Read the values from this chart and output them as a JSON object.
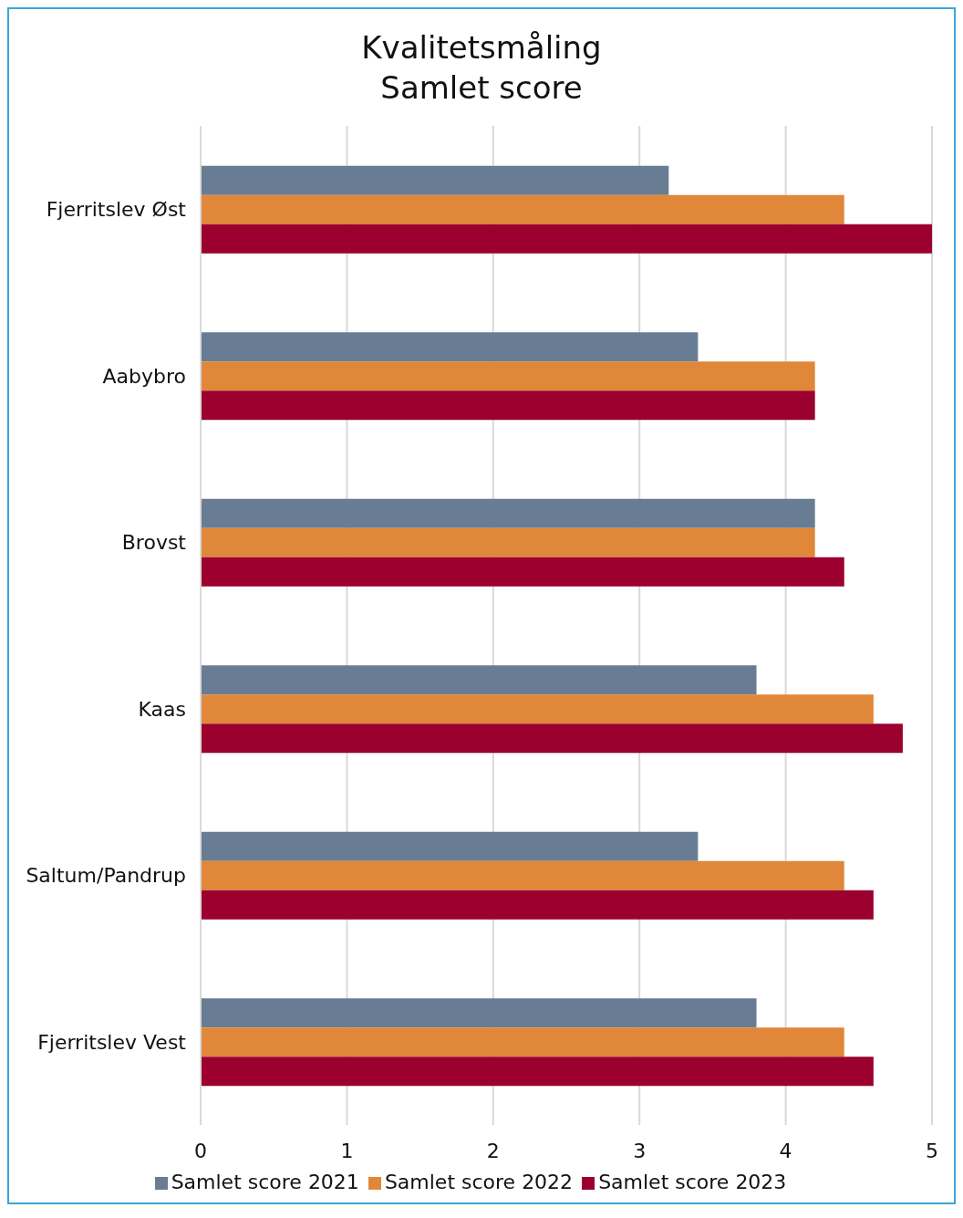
{
  "chart_data": {
    "type": "bar",
    "orientation": "horizontal",
    "title": "Kvalitetsmåling\nSamlet score",
    "categories": [
      "Fjerritslev Øst",
      "Aabybro",
      "Brovst",
      "Kaas",
      "Saltum/Pandrup",
      "Fjerritslev Vest"
    ],
    "series": [
      {
        "name": "Samlet score 2021",
        "color": "#687d93",
        "values": [
          3.2,
          3.4,
          4.2,
          3.8,
          3.4,
          3.8
        ]
      },
      {
        "name": "Samlet score 2022",
        "color": "#e0873a",
        "values": [
          4.4,
          4.2,
          4.2,
          4.6,
          4.4,
          4.4
        ]
      },
      {
        "name": "Samlet score 2023",
        "color": "#9b002f",
        "values": [
          5.0,
          4.2,
          4.4,
          4.8,
          4.6,
          4.6
        ]
      }
    ],
    "xlim": [
      0,
      5
    ],
    "xticks": [
      0,
      1,
      2,
      3,
      4,
      5
    ],
    "grid": "x",
    "legend": "bottom"
  }
}
